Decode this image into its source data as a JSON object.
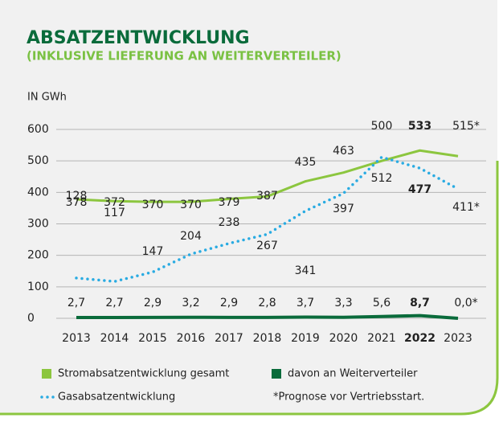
{
  "chart_data": {
    "type": "line",
    "title": "ABSATZENTWICKLUNG",
    "subtitle": "(INKLUSIVE LIEFERUNG AN WEITERVERTEILER)",
    "y_label": "IN GWh",
    "footnote": "*Prognose vor Vertriebsstart.",
    "categories": [
      "2013",
      "2014",
      "2015",
      "2016",
      "2017",
      "2018",
      "2019",
      "2020",
      "2021",
      "2022",
      "2023"
    ],
    "bold_category": "2022",
    "ylim": [
      0,
      600
    ],
    "yticks": [
      0,
      100,
      200,
      300,
      400,
      500,
      600
    ],
    "grid": true,
    "series": [
      {
        "name": "Stromabsatzentwicklung gesamt",
        "color": "#8cc63f",
        "style": "solid",
        "values": [
          378,
          372,
          370,
          370,
          379,
          387,
          435,
          463,
          500,
          533,
          515
        ],
        "value_labels": [
          "378",
          "372",
          "370",
          "370",
          "379",
          "387",
          "435",
          "463",
          "500",
          "533",
          "515*"
        ]
      },
      {
        "name": "Gasabsatzentwicklung",
        "color": "#29abe2",
        "style": "dotted",
        "values": [
          128,
          117,
          147,
          204,
          238,
          267,
          341,
          397,
          512,
          477,
          411
        ],
        "value_labels": [
          "128",
          "117",
          "147",
          "204",
          "238",
          "267",
          "341",
          "397",
          "512",
          "477",
          "411*"
        ]
      },
      {
        "name": "davon an Weiterverteiler",
        "color": "#0a6b3b",
        "style": "solid",
        "values": [
          2.7,
          2.7,
          2.9,
          3.2,
          2.9,
          2.8,
          3.7,
          3.3,
          5.6,
          8.7,
          0.0
        ],
        "value_labels": [
          "2,7",
          "2,7",
          "2,9",
          "3,2",
          "2,9",
          "2,8",
          "3,7",
          "3,3",
          "5,6",
          "8,7",
          "0,0*"
        ]
      }
    ]
  }
}
